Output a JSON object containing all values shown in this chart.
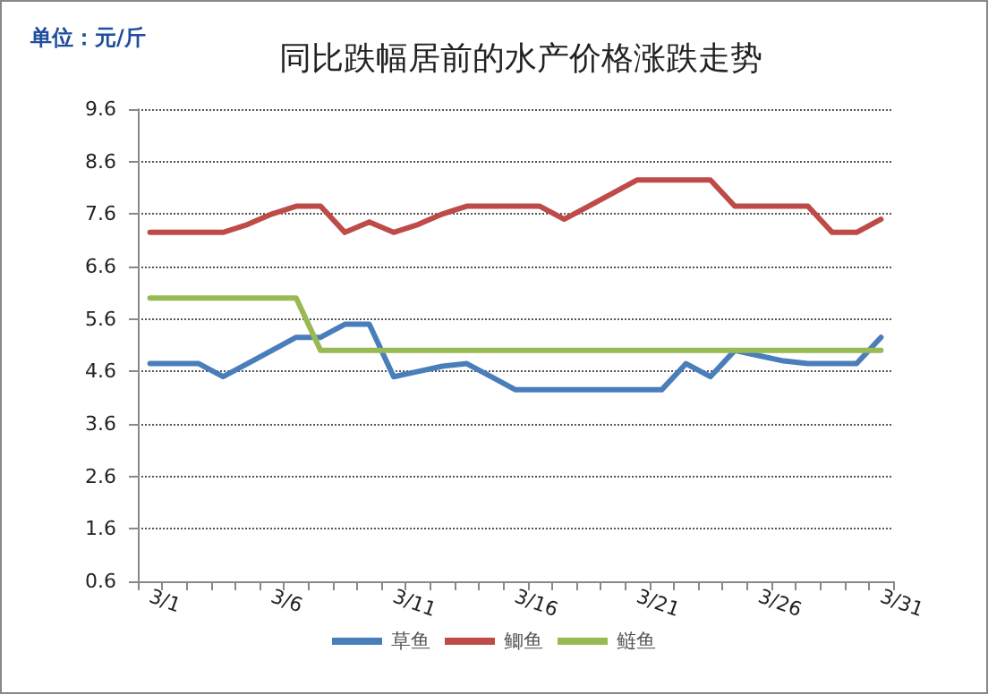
{
  "chart_data": {
    "type": "line",
    "title": "同比跌幅居前的水产价格涨跌走势",
    "annotations": [
      "单位：元/斤"
    ],
    "categories": [
      "3/1",
      null,
      null,
      null,
      null,
      "3/6",
      null,
      null,
      null,
      null,
      "3/11",
      null,
      null,
      null,
      null,
      "3/16",
      null,
      null,
      null,
      null,
      "3/21",
      null,
      null,
      null,
      null,
      "3/26",
      null,
      null,
      null,
      null,
      "3/31"
    ],
    "series": [
      {
        "name": "草鱼",
        "color": "#4a7ebb",
        "values": [
          4.75,
          4.75,
          4.75,
          4.5,
          4.75,
          5.0,
          5.25,
          5.25,
          5.5,
          5.5,
          4.5,
          4.6,
          4.7,
          4.75,
          4.5,
          4.25,
          4.25,
          4.25,
          4.25,
          4.25,
          4.25,
          4.25,
          4.75,
          4.5,
          5.0,
          4.9,
          4.8,
          4.75,
          4.75,
          4.75,
          5.25
        ]
      },
      {
        "name": "鲫鱼",
        "color": "#be4b48",
        "values": [
          7.25,
          7.25,
          7.25,
          7.25,
          7.4,
          7.6,
          7.75,
          7.75,
          7.25,
          7.45,
          7.25,
          7.4,
          7.6,
          7.75,
          7.75,
          7.75,
          7.75,
          7.5,
          7.75,
          8.0,
          8.25,
          8.25,
          8.25,
          8.25,
          7.75,
          7.75,
          7.75,
          7.75,
          7.25,
          7.25,
          7.5
        ]
      },
      {
        "name": "鲢鱼",
        "color": "#98b954",
        "values": [
          6.0,
          6.0,
          6.0,
          6.0,
          6.0,
          6.0,
          6.0,
          5.0,
          5.0,
          5.0,
          5.0,
          5.0,
          5.0,
          5.0,
          5.0,
          5.0,
          5.0,
          5.0,
          5.0,
          5.0,
          5.0,
          5.0,
          5.0,
          5.0,
          5.0,
          5.0,
          5.0,
          5.0,
          5.0,
          5.0,
          5.0
        ]
      }
    ],
    "ylim": [
      0.6,
      9.6
    ],
    "yticks": [
      0.6,
      1.6,
      2.6,
      3.6,
      4.6,
      5.6,
      6.6,
      7.6,
      8.6,
      9.6
    ],
    "grid": "y",
    "legend": "bottom",
    "marker": "none",
    "line_style": "solid"
  }
}
